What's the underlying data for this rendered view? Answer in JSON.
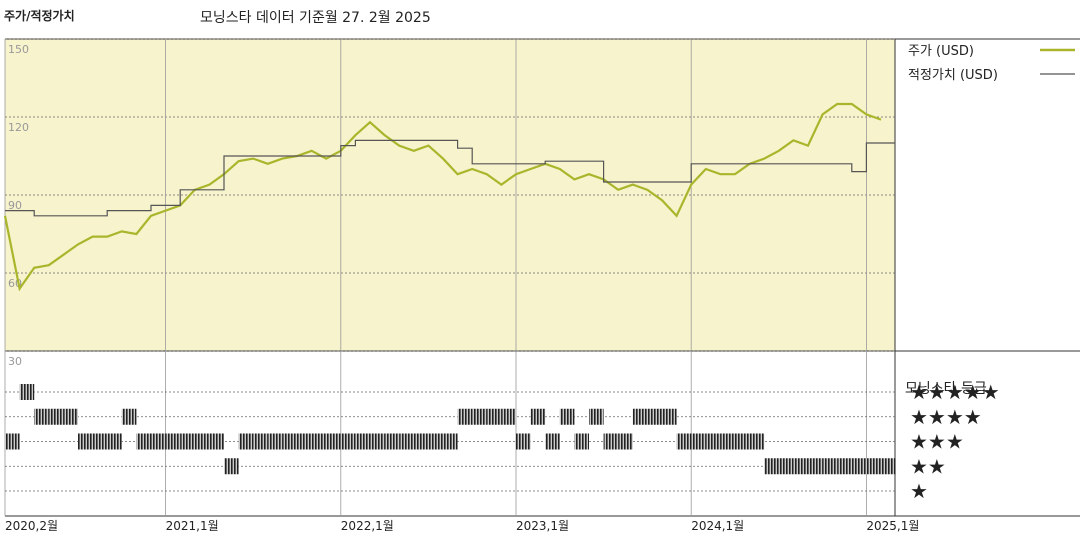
{
  "chart_data": {
    "type": "line",
    "header": "주가/적정가치",
    "title": "모닝스타 데이터 기준월 27. 2월 2025",
    "x": [
      "2020-02",
      "2020-03",
      "2020-04",
      "2020-05",
      "2020-06",
      "2020-07",
      "2020-08",
      "2020-09",
      "2020-10",
      "2020-11",
      "2020-12",
      "2021-01",
      "2021-02",
      "2021-03",
      "2021-04",
      "2021-05",
      "2021-06",
      "2021-07",
      "2021-08",
      "2021-09",
      "2021-10",
      "2021-11",
      "2021-12",
      "2022-01",
      "2022-02",
      "2022-03",
      "2022-04",
      "2022-05",
      "2022-06",
      "2022-07",
      "2022-08",
      "2022-09",
      "2022-10",
      "2022-11",
      "2022-12",
      "2023-01",
      "2023-02",
      "2023-03",
      "2023-04",
      "2023-05",
      "2023-06",
      "2023-07",
      "2023-08",
      "2023-09",
      "2023-10",
      "2023-11",
      "2023-12",
      "2024-01",
      "2024-02",
      "2024-03",
      "2024-04",
      "2024-05",
      "2024-06",
      "2024-07",
      "2024-08",
      "2024-09",
      "2024-10",
      "2024-11",
      "2024-12",
      "2025-01",
      "2025-02"
    ],
    "series": [
      {
        "name": "주가 (USD)",
        "color": "#a9b62c",
        "step": false,
        "values": [
          82,
          54,
          62,
          63,
          67,
          71,
          74,
          74,
          76,
          75,
          82,
          84,
          86,
          92,
          94,
          98,
          103,
          104,
          102,
          104,
          105,
          107,
          104,
          107,
          113,
          118,
          113,
          109,
          107,
          109,
          104,
          98,
          100,
          98,
          94,
          98,
          100,
          102,
          100,
          96,
          98,
          96,
          92,
          94,
          92,
          88,
          82,
          94,
          100,
          98,
          98,
          102,
          104,
          107,
          111,
          109,
          121,
          125,
          125,
          121,
          119
        ]
      },
      {
        "name": "적정가치 (USD)",
        "color": "#555555",
        "step": true,
        "values": [
          84,
          84,
          82,
          82,
          82,
          82,
          82,
          84,
          84,
          84,
          86,
          86,
          92,
          92,
          92,
          105,
          105,
          105,
          105,
          105,
          105,
          105,
          105,
          109,
          111,
          111,
          111,
          111,
          111,
          111,
          111,
          108,
          102,
          102,
          102,
          102,
          102,
          103,
          103,
          103,
          103,
          95,
          95,
          95,
          95,
          95,
          95,
          102,
          102,
          102,
          102,
          102,
          102,
          102,
          102,
          102,
          102,
          102,
          99,
          110,
          110
        ]
      }
    ],
    "ylim": [
      30,
      150
    ],
    "yticks": [
      30,
      60,
      90,
      120,
      150
    ],
    "grid": true,
    "xticks": [
      {
        "value": "2020-02",
        "label": "2020,2월"
      },
      {
        "value": "2021-01",
        "label": "2021,1월"
      },
      {
        "value": "2022-01",
        "label": "2022,1월"
      },
      {
        "value": "2023-01",
        "label": "2023,1월"
      },
      {
        "value": "2024-01",
        "label": "2024,1월"
      },
      {
        "value": "2025-01",
        "label": "2025,1월"
      }
    ],
    "ratings": {
      "title": "모닝스타 등급",
      "values": [
        3,
        5,
        4,
        4,
        4,
        3,
        3,
        3,
        4,
        3,
        3,
        3,
        3,
        3,
        3,
        2,
        3,
        3,
        3,
        3,
        3,
        3,
        3,
        3,
        3,
        3,
        3,
        3,
        3,
        3,
        3,
        4,
        4,
        4,
        4,
        3,
        4,
        3,
        4,
        3,
        4,
        3,
        3,
        4,
        4,
        4,
        3,
        3,
        3,
        3,
        3,
        3,
        2,
        2,
        2,
        2,
        2,
        2,
        2,
        2,
        2
      ],
      "ticks": [
        {
          "value": 5,
          "label": "★★★★★"
        },
        {
          "value": 4,
          "label": "★★★★"
        },
        {
          "value": 3,
          "label": "★★★"
        },
        {
          "value": 2,
          "label": "★★"
        },
        {
          "value": 1,
          "label": "★"
        }
      ]
    }
  }
}
